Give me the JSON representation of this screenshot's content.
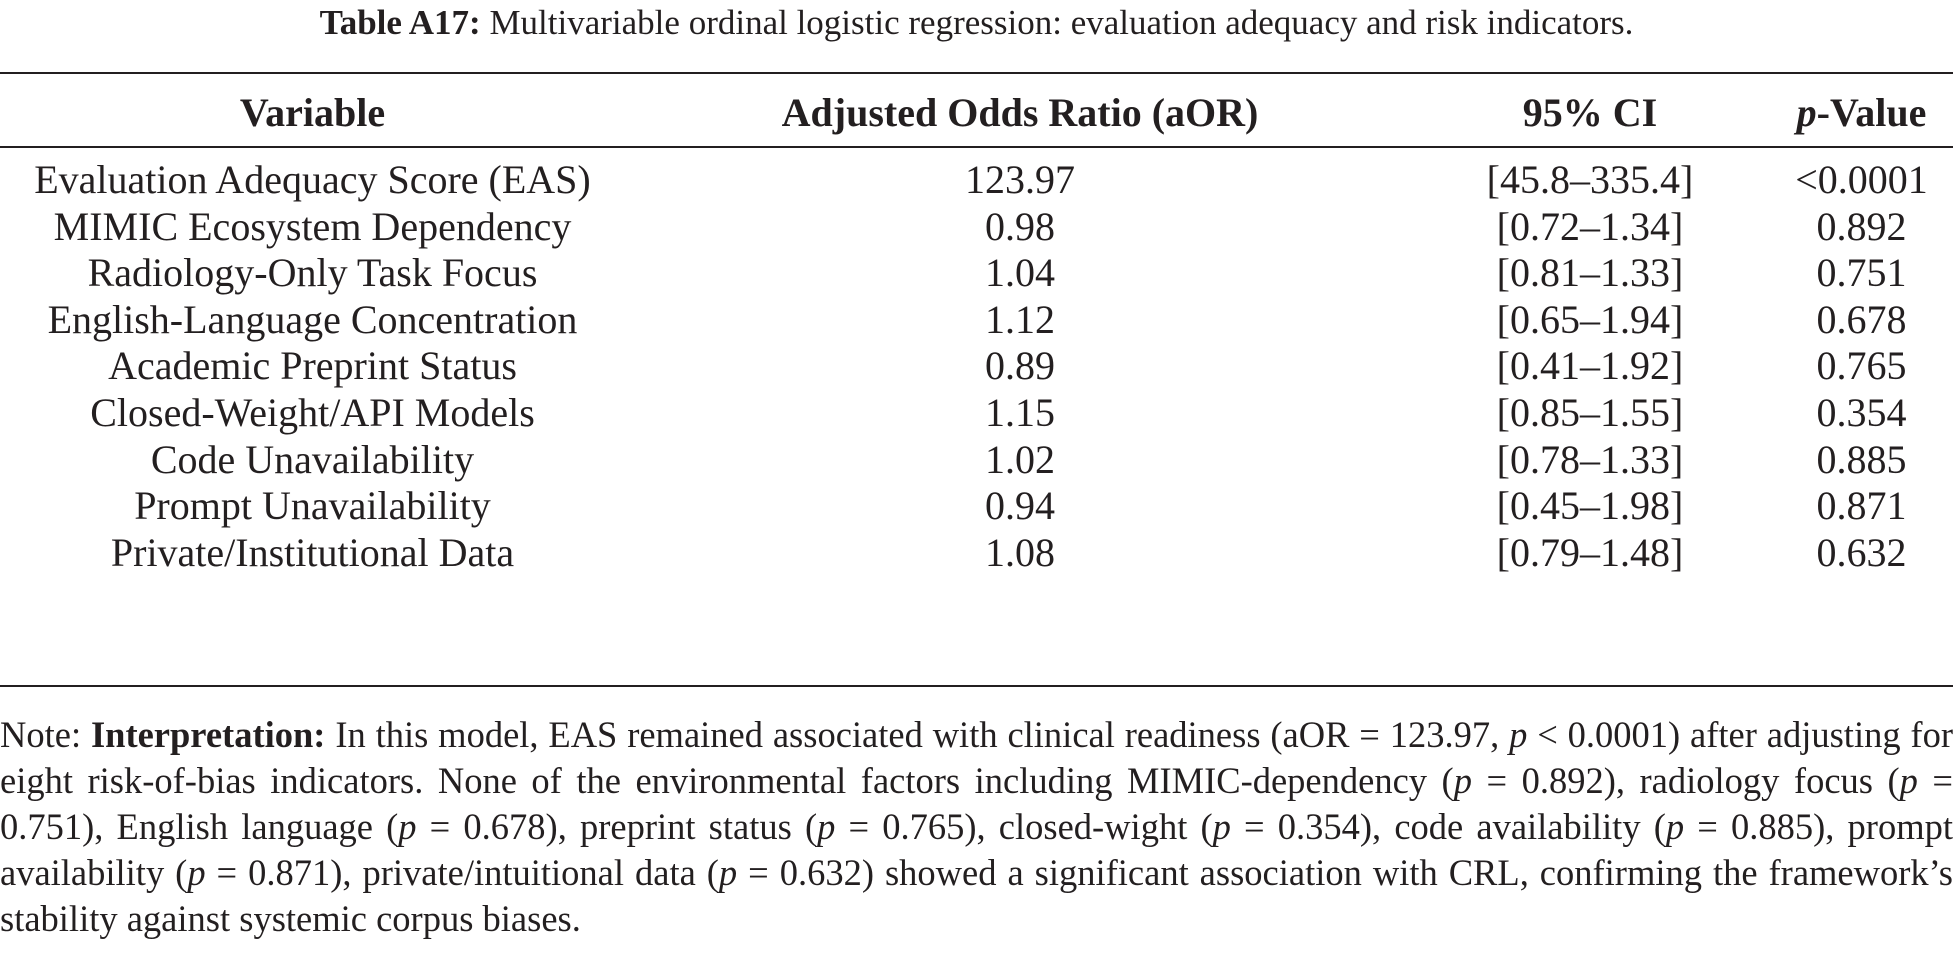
{
  "caption": {
    "label": "Table A17:",
    "text": "Multivariable ordinal logistic regression: evaluation adequacy and risk indicators."
  },
  "headers": {
    "variable": "Variable",
    "aor": "Adjusted Odds Ratio (aOR)",
    "ci": "95% CI",
    "p_italic": "p",
    "p_rest": "-Value"
  },
  "rows": [
    {
      "variable": "Evaluation Adequacy Score (EAS)",
      "aor": "123.97",
      "ci": "[45.8–335.4]",
      "p": "<0.0001"
    },
    {
      "variable": "MIMIC Ecosystem Dependency",
      "aor": "0.98",
      "ci": "[0.72–1.34]",
      "p": "0.892"
    },
    {
      "variable": "Radiology-Only Task Focus",
      "aor": "1.04",
      "ci": "[0.81–1.33]",
      "p": "0.751"
    },
    {
      "variable": "English-Language Concentration",
      "aor": "1.12",
      "ci": "[0.65–1.94]",
      "p": "0.678"
    },
    {
      "variable": "Academic Preprint Status",
      "aor": "0.89",
      "ci": "[0.41–1.92]",
      "p": "0.765"
    },
    {
      "variable": "Closed-Weight/API Models",
      "aor": "1.15",
      "ci": "[0.85–1.55]",
      "p": "0.354"
    },
    {
      "variable": "Code Unavailability",
      "aor": "1.02",
      "ci": "[0.78–1.33]",
      "p": "0.885"
    },
    {
      "variable": "Prompt Unavailability",
      "aor": "0.94",
      "ci": "[0.45–1.98]",
      "p": "0.871"
    },
    {
      "variable": "Private/Institutional Data",
      "aor": "1.08",
      "ci": "[0.79–1.48]",
      "p": "0.632"
    }
  ],
  "note": {
    "prefix": "Note:",
    "label": "Interpretation:",
    "segments": [
      {
        "t": " In this model, EAS remained associated with clinical readiness (aOR = 123.97, "
      },
      {
        "t": "p",
        "i": true
      },
      {
        "t": " < 0.0001) after adjusting for eight risk-of-bias indicators. None of the environmental factors including MIMIC-dependency ("
      },
      {
        "t": "p",
        "i": true
      },
      {
        "t": " = 0.892), radiology focus ("
      },
      {
        "t": "p",
        "i": true
      },
      {
        "t": " = 0.751), English language ("
      },
      {
        "t": "p",
        "i": true
      },
      {
        "t": " = 0.678), preprint status ("
      },
      {
        "t": "p",
        "i": true
      },
      {
        "t": " = 0.765), closed-wight ("
      },
      {
        "t": "p",
        "i": true
      },
      {
        "t": " = 0.354), code availability ("
      },
      {
        "t": "p",
        "i": true
      },
      {
        "t": " = 0.885), prompt availability ("
      },
      {
        "t": "p",
        "i": true
      },
      {
        "t": " = 0.871), private/intuitional data ("
      },
      {
        "t": "p",
        "i": true
      },
      {
        "t": " = 0.632) showed a significant association with CRL, confirming the framework’s stability against systemic corpus biases."
      }
    ]
  }
}
